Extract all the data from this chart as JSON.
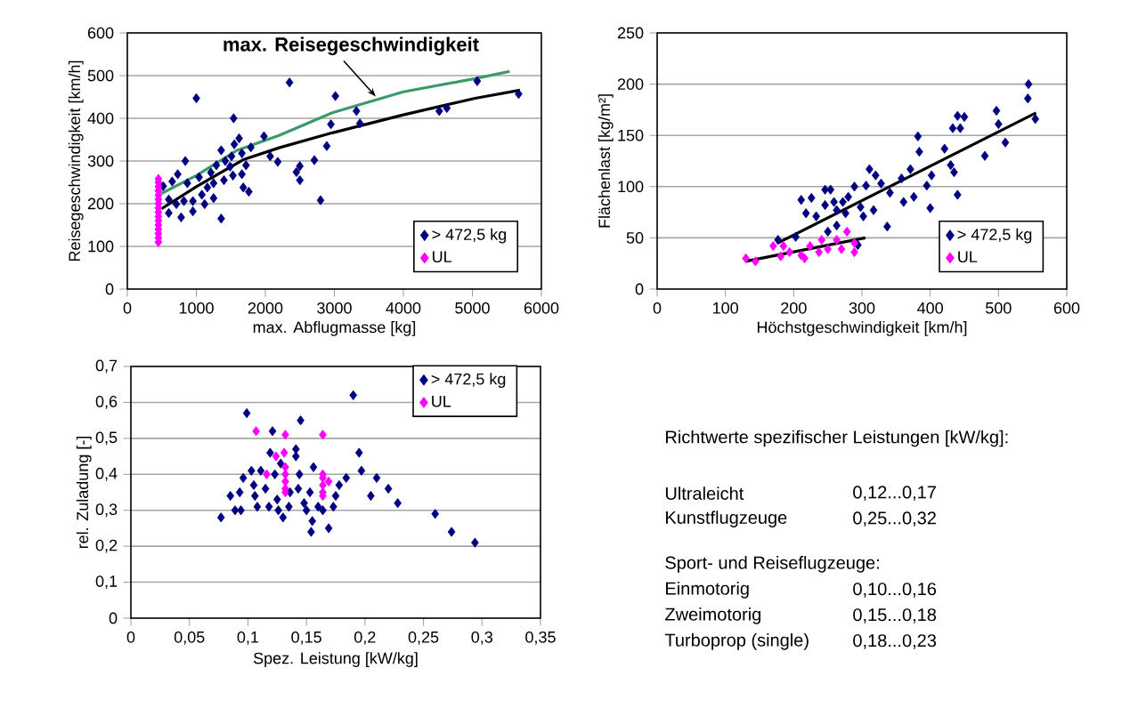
{
  "chart_data": [
    {
      "type": "scatter",
      "xlabel": "max. Abflugmasse [kg]",
      "ylabel": "Reisegeschwindigkeit [km/h]",
      "xlim": [
        0,
        6000
      ],
      "ylim": [
        0,
        600
      ],
      "xticks": [
        0,
        1000,
        2000,
        3000,
        4000,
        5000,
        6000
      ],
      "yticks": [
        0,
        100,
        200,
        300,
        400,
        500,
        600
      ],
      "grid": "y",
      "legend": "bottom right",
      "marker": "diamond",
      "annotations": [
        {
          "text": "max. Reisegeschwindigkeit",
          "x": 3600,
          "y": 451
        }
      ],
      "series": [
        {
          "name": "> 472,5 kg",
          "color": "#000080",
          "x": [
            1000,
            2350,
            3015,
            5070,
            5670,
            1540,
            3320,
            2950,
            3370,
            4520,
            4630,
            1980,
            1620,
            1550,
            1790,
            2890,
            2070,
            2180,
            2710,
            2500,
            2450,
            2500,
            2800,
            1760,
            1360,
            840,
            730,
            650,
            520,
            600,
            600,
            780,
            950,
            1080,
            1160,
            1210,
            1360,
            1420,
            1510,
            1660,
            1720,
            1660,
            1530,
            1400,
            1250,
            1040,
            870,
            820,
            1120,
            1250,
            950,
            710,
            1680,
            1490,
            1290
          ],
          "values": [
            447,
            484,
            452,
            487,
            457,
            400,
            417,
            386,
            388,
            417,
            424,
            358,
            353,
            339,
            332,
            335,
            311,
            298,
            302,
            288,
            274,
            255,
            208,
            228,
            165,
            300,
            269,
            252,
            241,
            210,
            178,
            168,
            182,
            221,
            238,
            273,
            325,
            300,
            311,
            318,
            290,
            269,
            266,
            255,
            248,
            262,
            248,
            206,
            199,
            213,
            206,
            199,
            238,
            287,
            290
          ]
        },
        {
          "name": "UL",
          "color": "#ff00ff",
          "x": [
            450,
            450,
            450,
            450,
            450,
            450,
            450,
            450,
            450,
            450,
            450,
            450,
            450,
            450,
            450,
            450
          ],
          "values": [
            110,
            120,
            130,
            140,
            150,
            160,
            170,
            180,
            190,
            200,
            210,
            220,
            230,
            240,
            250,
            258
          ]
        },
        {
          "type": "line",
          "marker": "none",
          "color": "#000000",
          "x": [
            495,
            1000,
            1680,
            2200,
            2970,
            4000,
            5040,
            5690
          ],
          "values": [
            188,
            240,
            303,
            331,
            366,
            408,
            447,
            466
          ]
        },
        {
          "type": "line",
          "marker": "none",
          "color": "#3a9a6a",
          "x": [
            495,
            1000,
            1590,
            2200,
            2970,
            4000,
            5040,
            5540
          ],
          "values": [
            224,
            266,
            325,
            360,
            413,
            462,
            493,
            510
          ]
        }
      ]
    },
    {
      "type": "scatter",
      "xlabel": "Höchstgeschwindigkeit [km/h]",
      "ylabel": "Flächenlast [kg/m²]",
      "xlim": [
        0,
        600
      ],
      "ylim": [
        0,
        250
      ],
      "xticks": [
        0,
        100,
        200,
        300,
        400,
        500,
        600
      ],
      "yticks": [
        0,
        50,
        100,
        150,
        200,
        250
      ],
      "grid": "y",
      "legend": "bottom right",
      "marker": "diamond",
      "series": [
        {
          "name": "> 472,5 kg",
          "color": "#000080",
          "x": [
            544,
            543,
            554,
            497,
            500,
            510,
            480,
            440,
            450,
            433,
            444,
            382,
            384,
            421,
            430,
            435,
            440,
            402,
            395,
            400,
            371,
            376,
            361,
            358,
            337,
            341,
            328,
            311,
            320,
            306,
            317,
            302,
            289,
            280,
            272,
            259,
            246,
            254,
            226,
            211,
            218,
            233,
            246,
            263,
            276,
            250,
            263,
            203,
            177,
            294,
            298
          ],
          "values": [
            200,
            186,
            166,
            174,
            161,
            143,
            130,
            169,
            168,
            157,
            157,
            149,
            134,
            137,
            121,
            114,
            92,
            111,
            101,
            79,
            117,
            90,
            85,
            108,
            61,
            94,
            103,
            117,
            111,
            101,
            77,
            71,
            100,
            90,
            85,
            85,
            97,
            97,
            89,
            87,
            74,
            71,
            82,
            77,
            74,
            56,
            62,
            51,
            48,
            43,
            80
          ]
        },
        {
          "name": "UL",
          "color": "#ff00ff",
          "x": [
            130,
            144,
            170,
            181,
            194,
            211,
            224,
            237,
            250,
            263,
            270,
            278,
            289,
            289,
            216,
            241,
            185
          ],
          "values": [
            30,
            27,
            42,
            32,
            36,
            33,
            42,
            36,
            39,
            48,
            39,
            56,
            45,
            36,
            30,
            48,
            42
          ]
        },
        {
          "type": "line",
          "marker": "none",
          "color": "#000000",
          "x": [
            177,
            555
          ],
          "values": [
            45,
            172
          ]
        },
        {
          "type": "line",
          "marker": "none",
          "color": "#000000",
          "x": [
            129,
            305
          ],
          "values": [
            27,
            50
          ]
        }
      ]
    },
    {
      "type": "scatter",
      "xlabel": "Spez. Leistung [kW/kg]",
      "ylabel": "rel. Zuladung [-]",
      "xlim": [
        0,
        0.35
      ],
      "ylim": [
        0,
        0.7
      ],
      "xticks": [
        0,
        {
          "value": 0.05,
          "label": "0,05"
        },
        {
          "value": 0.1,
          "label": "0,1"
        },
        {
          "value": 0.15,
          "label": "0,15"
        },
        {
          "value": 0.2,
          "label": "0,2"
        },
        {
          "value": 0.25,
          "label": "0,25"
        },
        {
          "value": 0.3,
          "label": "0,3"
        },
        {
          "value": 0.35,
          "label": "0,35"
        }
      ],
      "yticks": [
        0,
        {
          "value": 0.1,
          "label": "0,1"
        },
        {
          "value": 0.2,
          "label": "0,2"
        },
        {
          "value": 0.3,
          "label": "0,3"
        },
        {
          "value": 0.4,
          "label": "0,4"
        },
        {
          "value": 0.5,
          "label": "0,5"
        },
        {
          "value": 0.6,
          "label": "0,6"
        },
        {
          "value": 0.7,
          "label": "0,7"
        }
      ],
      "grid": "y",
      "legend": "top right",
      "marker": "diamond",
      "series": [
        {
          "name": "> 472,5 kg",
          "color": "#000080",
          "x": [
            0.19,
            0.099,
            0.145,
            0.121,
            0.141,
            0.141,
            0.119,
            0.195,
            0.197,
            0.156,
            0.103,
            0.111,
            0.096,
            0.184,
            0.21,
            0.178,
            0.22,
            0.228,
            0.205,
            0.26,
            0.274,
            0.294,
            0.077,
            0.085,
            0.093,
            0.089,
            0.094,
            0.106,
            0.108,
            0.105,
            0.115,
            0.118,
            0.125,
            0.126,
            0.13,
            0.135,
            0.136,
            0.144,
            0.143,
            0.148,
            0.15,
            0.155,
            0.154,
            0.153,
            0.16,
            0.164,
            0.169,
            0.173,
            0.175,
            0.123,
            0.128
          ],
          "values": [
            0.62,
            0.57,
            0.55,
            0.52,
            0.47,
            0.45,
            0.46,
            0.46,
            0.41,
            0.42,
            0.41,
            0.41,
            0.39,
            0.39,
            0.39,
            0.37,
            0.36,
            0.32,
            0.34,
            0.29,
            0.24,
            0.21,
            0.28,
            0.34,
            0.35,
            0.3,
            0.3,
            0.34,
            0.31,
            0.37,
            0.36,
            0.31,
            0.33,
            0.3,
            0.28,
            0.31,
            0.35,
            0.4,
            0.36,
            0.32,
            0.3,
            0.27,
            0.24,
            0.35,
            0.31,
            0.3,
            0.25,
            0.31,
            0.34,
            0.4,
            0.43
          ]
        },
        {
          "name": "UL",
          "color": "#ff00ff",
          "x": [
            0.107,
            0.132,
            0.164,
            0.131,
            0.124,
            0.116,
            0.132,
            0.132,
            0.132,
            0.132,
            0.132,
            0.164,
            0.164,
            0.164,
            0.164,
            0.164,
            0.169
          ],
          "values": [
            0.52,
            0.51,
            0.51,
            0.46,
            0.45,
            0.4,
            0.42,
            0.4,
            0.38,
            0.36,
            0.35,
            0.4,
            0.39,
            0.37,
            0.35,
            0.34,
            0.38
          ]
        }
      ]
    },
    {
      "type": "other",
      "title": "Richtwerte spezifischer Leistungen [kW/kg]:",
      "annotations": [
        "Ultraleicht",
        "0,12...0,17",
        "Kunstflugzeuge",
        "0,25...0,32",
        "Sport- und Reiseflugzeuge:",
        "Einmotorig",
        "0,10...0,16",
        "Zweimotorig",
        "0,15...0,18",
        "Turboprop (single)",
        "0,18...0,23"
      ]
    }
  ]
}
